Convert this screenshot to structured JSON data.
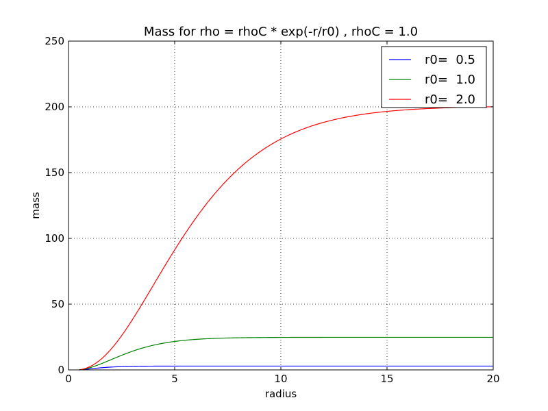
{
  "chart_data": {
    "type": "line",
    "title": "Mass for rho = rhoC * exp(-r/r0) , rhoC =   1.0",
    "xlabel": "radius",
    "ylabel": "mass",
    "xlim": [
      0,
      20
    ],
    "ylim": [
      0,
      250
    ],
    "xticks": [
      0,
      5,
      10,
      15,
      20
    ],
    "yticks": [
      0,
      50,
      100,
      150,
      200,
      250
    ],
    "grid": true,
    "legend_position": "top-right",
    "r_start": 0.5,
    "series": [
      {
        "name": "r0=  0.5",
        "r0": 0.5,
        "rhoC": 1.0,
        "color": "#0000ff"
      },
      {
        "name": "r0=  1.0",
        "r0": 1.0,
        "rhoC": 1.0,
        "color": "#008000"
      },
      {
        "name": "r0=  2.0",
        "r0": 2.0,
        "rhoC": 1.0,
        "color": "#ff0000"
      }
    ]
  }
}
